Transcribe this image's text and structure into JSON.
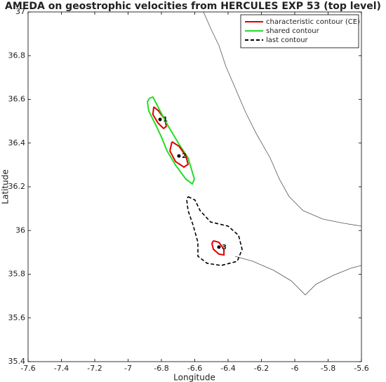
{
  "chart_data": {
    "type": "line",
    "title": "AMEDA on geostrophic velocities from HERCULES EXP 53 (top level)",
    "xlabel": "Longitude",
    "ylabel": "Latitude",
    "xlim": [
      -7.6,
      -5.6
    ],
    "ylim": [
      35.4,
      37
    ],
    "xticks": [
      -7.6,
      -7.4,
      -7.2,
      -7,
      -6.8,
      -6.6,
      -6.4,
      -6.2,
      -6,
      -5.8,
      -5.6
    ],
    "yticks": [
      35.4,
      35.6,
      35.8,
      36,
      36.2,
      36.4,
      36.6,
      36.8,
      37
    ],
    "legend": "upper right",
    "series": [
      {
        "name": "characteristic contour (CE)",
        "color": "#e00000",
        "dash": false,
        "x": [
          -6.846,
          -6.817,
          -6.779,
          -6.771,
          -6.787,
          -6.821,
          -6.851,
          -6.846
        ],
        "y": [
          36.566,
          36.547,
          36.508,
          36.476,
          36.467,
          36.492,
          36.531,
          36.566
        ]
      },
      {
        "name": "shared contour",
        "color": "#22dd22",
        "dash": false,
        "x": [
          -6.872,
          -6.851,
          -6.808,
          -6.758,
          -6.695,
          -6.64,
          -6.602,
          -6.615,
          -6.653,
          -6.716,
          -6.766,
          -6.8,
          -6.834,
          -6.876,
          -6.884,
          -6.872
        ],
        "y": [
          36.605,
          36.611,
          36.547,
          36.476,
          36.396,
          36.332,
          36.235,
          36.213,
          36.235,
          36.3,
          36.364,
          36.428,
          36.483,
          36.547,
          36.589,
          36.605
        ]
      },
      {
        "name": "last contour",
        "color": "#000000",
        "dash": true,
        "x": [
          -6.64,
          -6.598,
          -6.568,
          -6.505,
          -6.4,
          -6.337,
          -6.316,
          -6.345,
          -6.442,
          -6.526,
          -6.581,
          -6.581,
          -6.611,
          -6.64,
          -6.648,
          -6.64
        ],
        "y": [
          36.155,
          36.139,
          36.091,
          36.039,
          36.02,
          35.978,
          35.914,
          35.859,
          35.84,
          35.85,
          35.882,
          35.946,
          36.027,
          36.091,
          36.139,
          36.155
        ]
      },
      {
        "color": "#e00000",
        "dash": false,
        "x": [
          -6.737,
          -6.695,
          -6.653,
          -6.64,
          -6.665,
          -6.716,
          -6.749,
          -6.737
        ],
        "y": [
          36.406,
          36.386,
          36.341,
          36.303,
          36.29,
          36.316,
          36.364,
          36.406
        ]
      },
      {
        "color": "#e00000",
        "dash": false,
        "x": [
          -6.488,
          -6.455,
          -6.425,
          -6.425,
          -6.455,
          -6.488,
          -6.497,
          -6.488
        ],
        "y": [
          35.953,
          35.946,
          35.914,
          35.888,
          35.892,
          35.914,
          35.94,
          35.953
        ]
      }
    ],
    "centers": {
      "x": [
        -6.808,
        -6.695,
        -6.455
      ],
      "y": [
        36.508,
        36.341,
        35.924
      ],
      "labels": [
        "1",
        "2",
        "3"
      ]
    }
  }
}
